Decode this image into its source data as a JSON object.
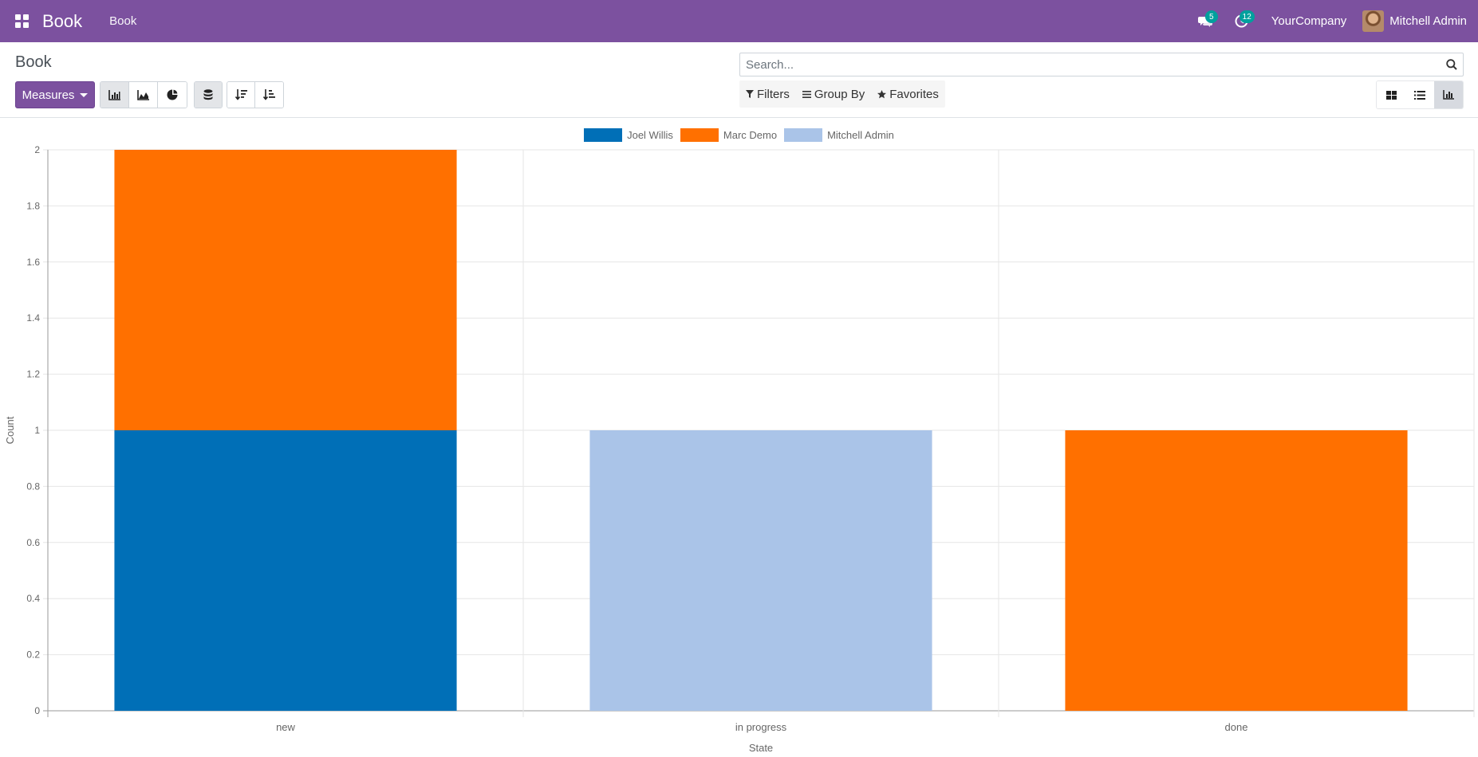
{
  "navbar": {
    "brand": "Book",
    "menu": [
      "Book"
    ],
    "messages_count": "5",
    "activities_count": "12",
    "company": "YourCompany",
    "user": "Mitchell Admin"
  },
  "control_panel": {
    "breadcrumb": "Book",
    "measures_label": "Measures",
    "search_placeholder": "Search...",
    "filters_label": "Filters",
    "groupby_label": "Group By",
    "favorites_label": "Favorites"
  },
  "colors": {
    "navbar": "#7c519f",
    "joel": "#006fb7",
    "marc": "#ff7000",
    "mitchell": "#aac4e8"
  },
  "chart_data": {
    "type": "bar",
    "stacked": true,
    "categories": [
      "new",
      "in progress",
      "done"
    ],
    "series": [
      {
        "name": "Joel Willis",
        "color": "#006fb7",
        "values": [
          1,
          0,
          0
        ]
      },
      {
        "name": "Marc Demo",
        "color": "#ff7000",
        "values": [
          1,
          0,
          1
        ]
      },
      {
        "name": "Mitchell Admin",
        "color": "#aac4e8",
        "values": [
          0,
          1,
          0
        ]
      }
    ],
    "xlabel": "State",
    "ylabel": "Count",
    "ylim": [
      0,
      2
    ],
    "yticks": [
      "0",
      "0.2",
      "0.4",
      "0.6",
      "0.8",
      "1",
      "1.2",
      "1.4",
      "1.6",
      "1.8",
      "2"
    ],
    "legend": "top-center",
    "grid": true
  }
}
